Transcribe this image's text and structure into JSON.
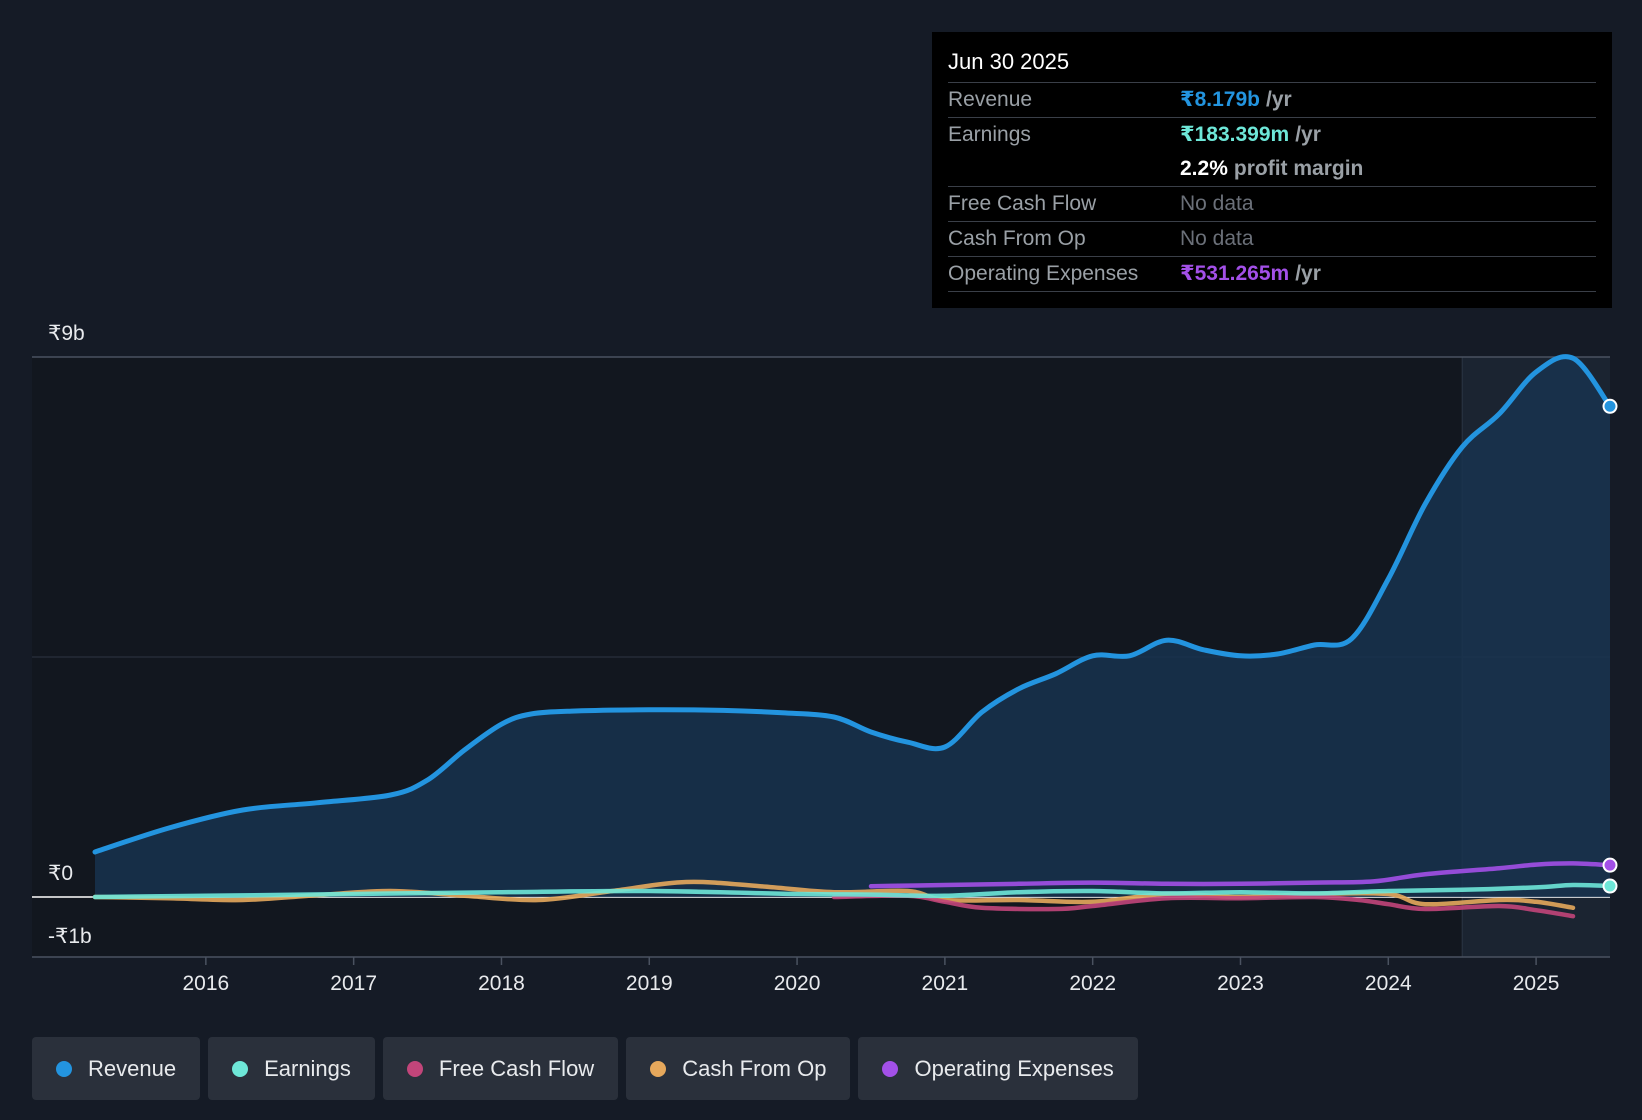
{
  "tooltip": {
    "date": "Jun 30 2025",
    "revenue_label": "Revenue",
    "revenue_value": "₹8.179b",
    "earnings_label": "Earnings",
    "earnings_value": "₹183.399m",
    "margin_value": "2.2%",
    "margin_label": "profit margin",
    "fcf_label": "Free Cash Flow",
    "fcf_value": "No data",
    "cfo_label": "Cash From Op",
    "cfo_value": "No data",
    "opex_label": "Operating Expenses",
    "opex_value": "₹531.265m",
    "unit": "/yr"
  },
  "legend": [
    {
      "label": "Revenue",
      "color": "#2394df"
    },
    {
      "label": "Earnings",
      "color": "#6ee7d8"
    },
    {
      "label": "Free Cash Flow",
      "color": "#c2457a"
    },
    {
      "label": "Cash From Op",
      "color": "#e6a85c"
    },
    {
      "label": "Operating Expenses",
      "color": "#a350e8"
    }
  ],
  "chart_data": {
    "type": "area",
    "y_tick_labels": [
      "₹9b",
      "₹0",
      "-₹1b"
    ],
    "ylim": [
      -1,
      9
    ],
    "xlim": [
      2015.25,
      2025.5
    ],
    "x_tick_labels": [
      "2016",
      "2017",
      "2018",
      "2019",
      "2020",
      "2021",
      "2022",
      "2023",
      "2024",
      "2025"
    ],
    "highlight_start": 2024.5,
    "series": [
      {
        "name": "Revenue",
        "color": "#2394df",
        "x": [
          2015.25,
          2015.75,
          2016.25,
          2016.75,
          2017.25,
          2017.5,
          2017.75,
          2018.0,
          2018.2,
          2018.5,
          2019.0,
          2019.5,
          2019.9,
          2020.25,
          2020.5,
          2020.75,
          2021.0,
          2021.25,
          2021.5,
          2021.75,
          2022.0,
          2022.25,
          2022.5,
          2022.75,
          2023.0,
          2023.25,
          2023.5,
          2023.75,
          2024.0,
          2024.25,
          2024.5,
          2024.75,
          2025.0,
          2025.25,
          2025.5
        ],
        "values": [
          0.75,
          1.15,
          1.45,
          1.57,
          1.7,
          1.95,
          2.45,
          2.88,
          3.05,
          3.1,
          3.12,
          3.11,
          3.07,
          3.0,
          2.75,
          2.58,
          2.5,
          3.08,
          3.47,
          3.72,
          4.02,
          4.02,
          4.28,
          4.12,
          4.02,
          4.05,
          4.2,
          4.3,
          5.3,
          6.55,
          7.5,
          8.05,
          8.75,
          8.98,
          8.179
        ]
      },
      {
        "name": "Earnings",
        "color": "#6ee7d8",
        "x": [
          2015.25,
          2016.0,
          2017.0,
          2018.0,
          2019.0,
          2020.0,
          2020.5,
          2021.0,
          2021.5,
          2022.0,
          2022.5,
          2023.0,
          2023.5,
          2024.0,
          2024.5,
          2025.0,
          2025.25,
          2025.5
        ],
        "values": [
          0.0,
          0.02,
          0.05,
          0.08,
          0.1,
          0.05,
          0.04,
          0.02,
          0.08,
          0.1,
          0.06,
          0.08,
          0.06,
          0.1,
          0.12,
          0.16,
          0.2,
          0.183
        ]
      },
      {
        "name": "Free Cash Flow",
        "color": "#c2457a",
        "x": [
          2020.25,
          2020.75,
          2021.0,
          2021.25,
          2021.75,
          2022.0,
          2022.5,
          2023.0,
          2023.5,
          2023.8,
          2024.0,
          2024.25,
          2024.75,
          2025.0,
          2025.25
        ],
        "values": [
          0.0,
          0.02,
          -0.08,
          -0.18,
          -0.2,
          -0.15,
          -0.02,
          -0.02,
          0.0,
          -0.05,
          -0.12,
          -0.2,
          -0.15,
          -0.22,
          -0.32
        ]
      },
      {
        "name": "Cash From Op",
        "color": "#e6a85c",
        "x": [
          2015.25,
          2015.75,
          2016.25,
          2016.75,
          2017.25,
          2017.75,
          2018.25,
          2018.75,
          2019.25,
          2019.75,
          2020.25,
          2020.75,
          2021.0,
          2021.5,
          2022.0,
          2022.5,
          2023.0,
          2023.5,
          2024.0,
          2024.25,
          2024.75,
          2025.0,
          2025.25
        ],
        "values": [
          0.0,
          -0.02,
          -0.05,
          0.03,
          0.1,
          0.02,
          -0.05,
          0.1,
          0.25,
          0.18,
          0.08,
          0.1,
          -0.05,
          -0.05,
          -0.08,
          0.05,
          0.0,
          0.05,
          0.05,
          -0.12,
          -0.05,
          -0.08,
          -0.18
        ]
      },
      {
        "name": "Operating Expenses",
        "color": "#a350e8",
        "x": [
          2020.5,
          2021.0,
          2021.5,
          2022.0,
          2022.5,
          2023.0,
          2023.5,
          2023.9,
          2024.25,
          2024.75,
          2025.0,
          2025.25,
          2025.5
        ],
        "values": [
          0.18,
          0.2,
          0.22,
          0.24,
          0.22,
          0.22,
          0.24,
          0.26,
          0.38,
          0.48,
          0.54,
          0.56,
          0.531
        ]
      }
    ]
  }
}
